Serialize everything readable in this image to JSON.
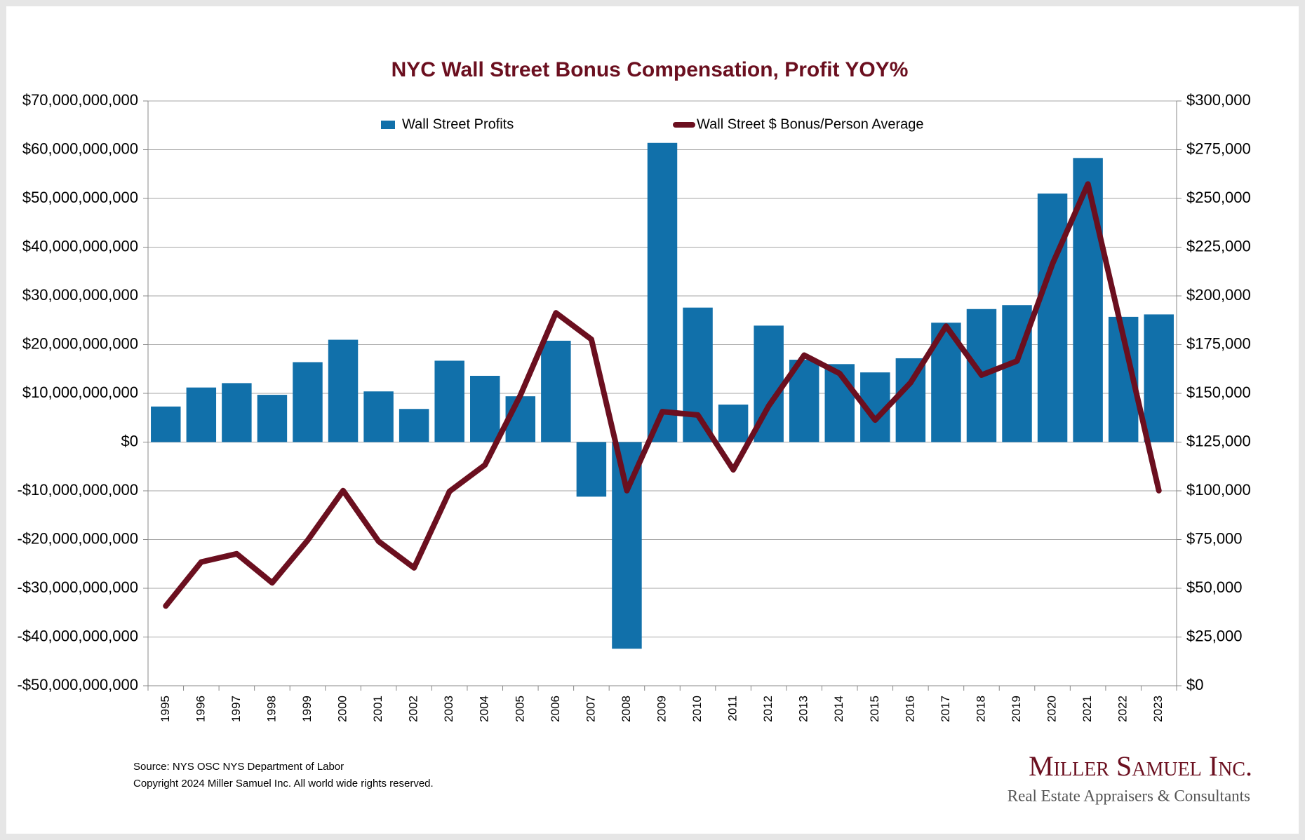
{
  "chart_data": {
    "type": "bar",
    "title": "NYC Wall Street Bonus Compensation, Profit YOY%",
    "categories": [
      "1995",
      "1996",
      "1997",
      "1998",
      "1999",
      "2000",
      "2001",
      "2002",
      "2003",
      "2004",
      "2005",
      "2006",
      "2007",
      "2008",
      "2009",
      "2010",
      "2011",
      "2012",
      "2013",
      "2014",
      "2015",
      "2016",
      "2017",
      "2018",
      "2019",
      "2020",
      "2021",
      "2022",
      "2023"
    ],
    "series": [
      {
        "name": "Wall Street Profits",
        "type": "bar",
        "color": "#1170aa",
        "values": [
          7300000000,
          11200000000,
          12100000000,
          9700000000,
          16400000000,
          21000000000,
          10400000000,
          6800000000,
          16700000000,
          13600000000,
          9400000000,
          20800000000,
          -11200000000,
          -42400000000,
          61400000000,
          27600000000,
          7700000000,
          23900000000,
          16900000000,
          16000000000,
          14300000000,
          17200000000,
          24500000000,
          27300000000,
          28100000000,
          51000000000,
          58300000000,
          25700000000,
          26200000000
        ]
      },
      {
        "name": "Wall Street $ Bonus/Person Average",
        "type": "line",
        "axis": "y2",
        "color": "#6b0f1f",
        "values": [
          40900,
          63500,
          67700,
          52800,
          74600,
          100100,
          74100,
          60500,
          99700,
          113300,
          149100,
          191300,
          177700,
          100100,
          140600,
          138900,
          110800,
          143600,
          169600,
          160200,
          136300,
          155500,
          184500,
          159400,
          166600,
          216400,
          257400,
          179000,
          100100
        ]
      }
    ],
    "ylim": [
      -50000000000,
      70000000000
    ],
    "yticks": [
      {
        "value": -50000000000,
        "label": "-$50,000,000,000"
      },
      {
        "value": -40000000000,
        "label": "-$40,000,000,000"
      },
      {
        "value": -30000000000,
        "label": "-$30,000,000,000"
      },
      {
        "value": -20000000000,
        "label": "-$20,000,000,000"
      },
      {
        "value": -10000000000,
        "label": "-$10,000,000,000"
      },
      {
        "value": 0,
        "label": "$0"
      },
      {
        "value": 10000000000,
        "label": "$10,000,000,000"
      },
      {
        "value": 20000000000,
        "label": "$20,000,000,000"
      },
      {
        "value": 30000000000,
        "label": "$30,000,000,000"
      },
      {
        "value": 40000000000,
        "label": "$40,000,000,000"
      },
      {
        "value": 50000000000,
        "label": "$50,000,000,000"
      },
      {
        "value": 60000000000,
        "label": "$60,000,000,000"
      },
      {
        "value": 70000000000,
        "label": "$70,000,000,000"
      }
    ],
    "y2lim": [
      0,
      300000
    ],
    "y2ticks": [
      {
        "value": 0,
        "label": "$0"
      },
      {
        "value": 25000,
        "label": "$25,000"
      },
      {
        "value": 50000,
        "label": "$50,000"
      },
      {
        "value": 75000,
        "label": "$75,000"
      },
      {
        "value": 100000,
        "label": "$100,000"
      },
      {
        "value": 125000,
        "label": "$125,000"
      },
      {
        "value": 150000,
        "label": "$150,000"
      },
      {
        "value": 175000,
        "label": "$175,000"
      },
      {
        "value": 200000,
        "label": "$200,000"
      },
      {
        "value": 225000,
        "label": "$225,000"
      },
      {
        "value": 250000,
        "label": "$250,000"
      },
      {
        "value": 275000,
        "label": "$275,000"
      },
      {
        "value": 300000,
        "label": "$300,000"
      }
    ],
    "grid": true,
    "legend": "top",
    "source": "Source: NYS OSC NYS Department of Labor",
    "copyright": "Copyright 2024 Miller Samuel Inc.  All world wide rights reserved.",
    "brand": "Miller Samuel Inc.",
    "brand_tagline": "Real Estate Appraisers & Consultants"
  }
}
